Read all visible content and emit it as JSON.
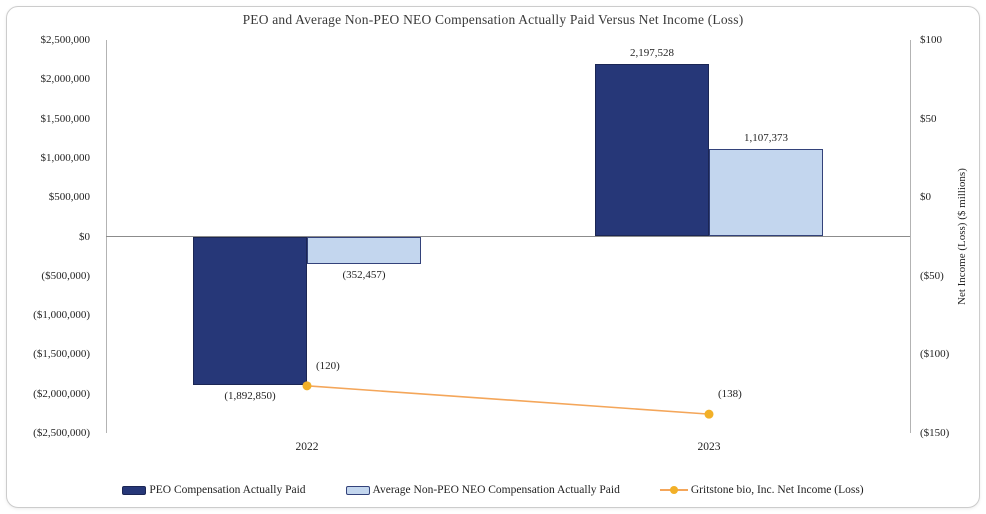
{
  "chart_data": {
    "type": "combo-bar-line",
    "title": "PEO and Average Non-PEO NEO Compensation Actually Paid Versus Net Income (Loss)",
    "categories": [
      "2022",
      "2023"
    ],
    "bar_series": [
      {
        "name": "PEO Compensation Actually Paid",
        "axis": "left",
        "color": "#263778",
        "border_color": "#1b2654",
        "values": [
          -1892850,
          2197528
        ],
        "labels": [
          "(1,892,850)",
          "2,197,528"
        ]
      },
      {
        "name": "Average Non-PEO NEO Compensation Actually Paid",
        "axis": "left",
        "color": "#c3d6ee",
        "border_color": "#33427a",
        "values": [
          -352457,
          1107373
        ],
        "labels": [
          "(352,457)",
          "1,107,373"
        ]
      }
    ],
    "line_series": [
      {
        "name": "Gritstone bio, Inc. Net Income (Loss)",
        "axis": "right",
        "line_color": "#f4a65a",
        "marker_color": "#f2b028",
        "values": [
          -120,
          -138
        ],
        "labels": [
          "(120)",
          "(138)"
        ]
      }
    ],
    "left_axis": {
      "min": -2500000,
      "max": 2500000,
      "tick_step": 500000,
      "tick_labels": [
        "$2,500,000",
        "$2,000,000",
        "$1,500,000",
        "$1,000,000",
        "$500,000",
        "$0",
        "($500,000)",
        "($1,000,000)",
        "($1,500,000)",
        "($2,000,000)",
        "($2,500,000)"
      ]
    },
    "right_axis": {
      "min": -150,
      "max": 100,
      "tick_step": 50,
      "title": "Net Income (Loss)  ($ millions)",
      "tick_labels": [
        "$100",
        "$50",
        "$0",
        "($50)",
        "($100)",
        "($150)"
      ]
    },
    "gridlines": false,
    "legend_position": "bottom",
    "colors": {
      "zero_line": "#8c8c8c",
      "axis_line": "#b3b3b3",
      "text": "#1f1f1f",
      "card_border": "#cccccc"
    }
  }
}
